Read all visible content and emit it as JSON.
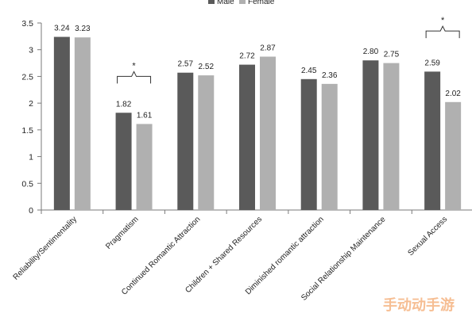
{
  "chart_data": {
    "type": "bar",
    "title": "",
    "xlabel": "",
    "ylabel": "",
    "ylim": [
      0,
      3.5
    ],
    "yticks": [
      "0",
      "0.5",
      "1",
      "1.5",
      "2",
      "2.5",
      "3",
      "3.5"
    ],
    "legend_position": "top",
    "categories": [
      "Reliability/Sentimentality",
      "Pragmatism",
      "Continued Romantic Attraction",
      "Children + Shared Resources",
      "Diminished romantic attraction",
      "Social Relationship Maintenance",
      "Sexual Access"
    ],
    "series": [
      {
        "name": "Male",
        "color": "#5a5a5a",
        "values": [
          3.24,
          1.82,
          2.57,
          2.72,
          2.45,
          2.8,
          2.59
        ],
        "labels": [
          "3.24",
          "1.82",
          "2.57",
          "2.72",
          "2.45",
          "2.80",
          "2.59"
        ]
      },
      {
        "name": "Female",
        "color": "#b0b0b0",
        "values": [
          3.23,
          1.61,
          2.52,
          2.87,
          2.36,
          2.75,
          2.02
        ],
        "labels": [
          "3.23",
          "1.61",
          "2.52",
          "2.87",
          "2.36",
          "2.75",
          "2.02"
        ]
      }
    ],
    "significance": [
      {
        "category": "Pragmatism",
        "label": "*",
        "level": 2.5
      },
      {
        "category": "Sexual Access",
        "label": "*",
        "level": 3.35
      }
    ],
    "grid": false
  },
  "watermark_text": "手动动手游"
}
